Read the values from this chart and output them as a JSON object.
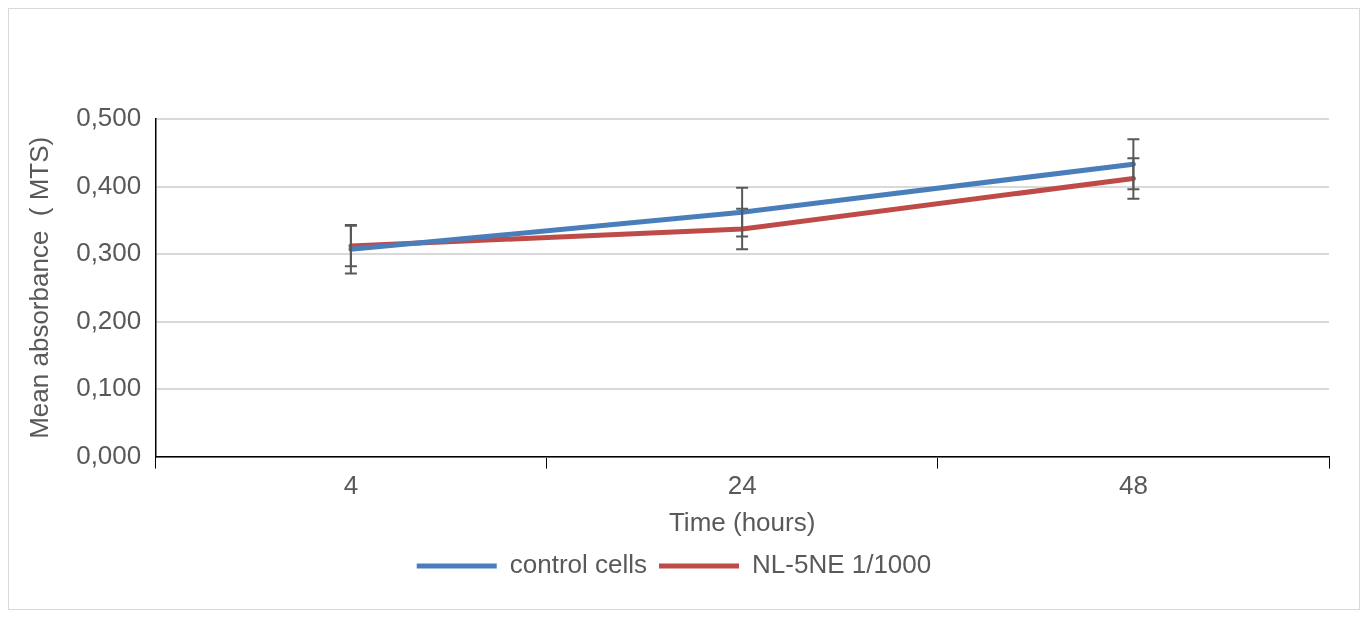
{
  "chart_data": {
    "type": "line",
    "xlabel": "Time (hours)",
    "ylabel": "Mean absorbance  ( MTS)",
    "categories": [
      "4",
      "24",
      "48"
    ],
    "series": [
      {
        "name": "control cells",
        "color": "#4a7ebb",
        "values": [
          0.307,
          0.362,
          0.433
        ],
        "errors": [
          0.036,
          0.036,
          0.037
        ]
      },
      {
        "name": "NL-5NE 1/1000",
        "color": "#be4b48",
        "values": [
          0.312,
          0.337,
          0.412
        ],
        "errors": [
          0.03,
          0.03,
          0.03
        ]
      }
    ],
    "ylim": [
      0,
      0.5
    ],
    "yticks": [
      {
        "value": 0,
        "label": "0,000"
      },
      {
        "value": 0.1,
        "label": "0,100"
      },
      {
        "value": 0.2,
        "label": "0,200"
      },
      {
        "value": 0.3,
        "label": "0,300"
      },
      {
        "value": 0.4,
        "label": "0,400"
      },
      {
        "value": 0.5,
        "label": "0,500"
      }
    ],
    "grid": "y",
    "legend": "bottom",
    "marker": "none",
    "line_style": "solid"
  }
}
